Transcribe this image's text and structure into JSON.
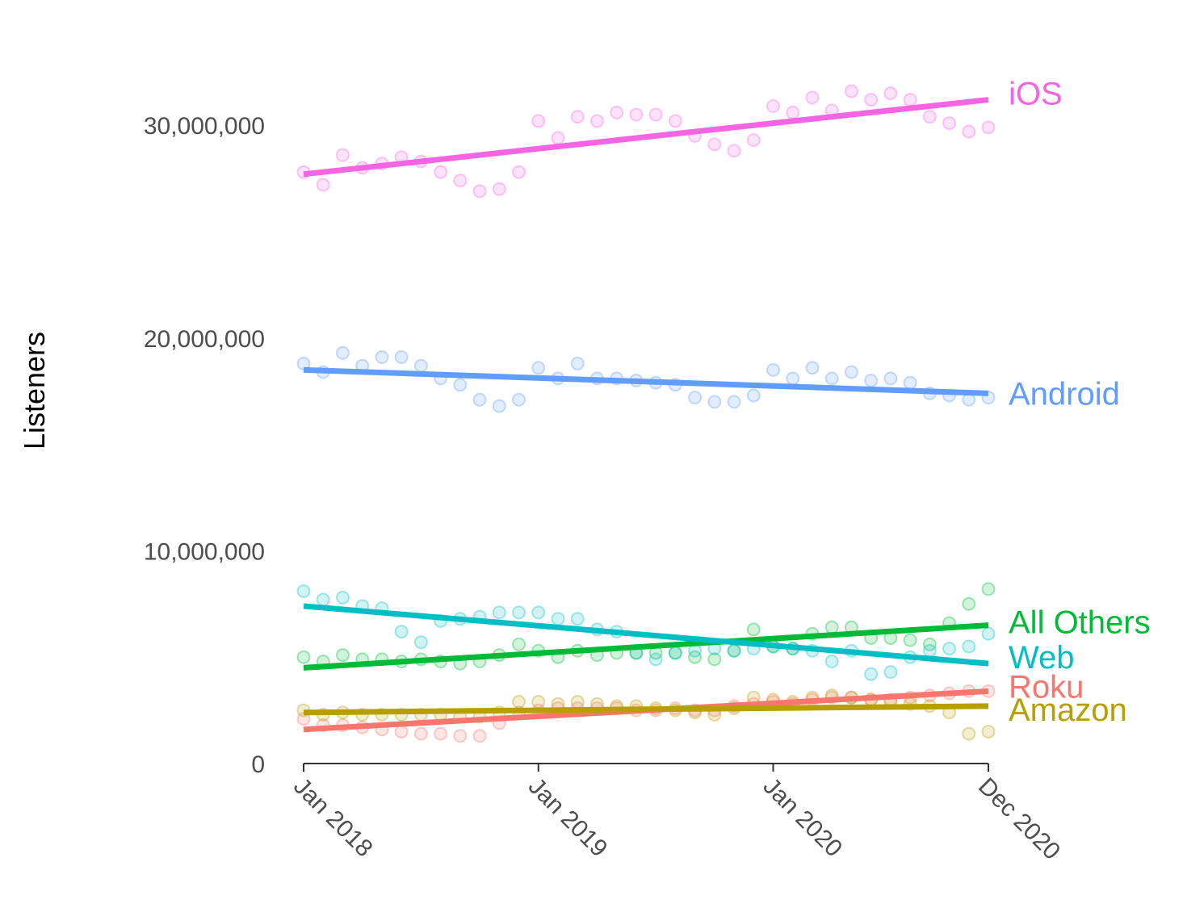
{
  "chart_data": {
    "type": "scatter",
    "ylabel": "Listeners",
    "xlabel": "",
    "ylim": [
      0,
      34000000
    ],
    "y_ticks": [
      {
        "value": 0,
        "label": "0"
      },
      {
        "value": 10000000,
        "label": "10,000,000"
      },
      {
        "value": 20000000,
        "label": "20,000,000"
      },
      {
        "value": 30000000,
        "label": "30,000,000"
      }
    ],
    "x_ticks": [
      {
        "value": "2018-01",
        "label": "Jan 2018"
      },
      {
        "value": "2019-01",
        "label": "Jan 2019"
      },
      {
        "value": "2020-01",
        "label": "Jan 2020"
      },
      {
        "value": "2020-12",
        "label": "Dec 2020"
      }
    ],
    "x": [
      "2018-01",
      "2018-02",
      "2018-03",
      "2018-04",
      "2018-05",
      "2018-06",
      "2018-07",
      "2018-08",
      "2018-09",
      "2018-10",
      "2018-11",
      "2018-12",
      "2019-01",
      "2019-02",
      "2019-03",
      "2019-04",
      "2019-05",
      "2019-06",
      "2019-07",
      "2019-08",
      "2019-09",
      "2019-10",
      "2019-11",
      "2019-12",
      "2020-01",
      "2020-02",
      "2020-03",
      "2020-04",
      "2020-05",
      "2020-06",
      "2020-07",
      "2020-08",
      "2020-09",
      "2020-10",
      "2020-11",
      "2020-12"
    ],
    "grid": false,
    "legend": "direct labels at right end of trend lines",
    "series": [
      {
        "name": "iOS",
        "color": "#F564E3",
        "trend": [
          27700000,
          31200000
        ],
        "values": [
          27800000,
          27200000,
          28600000,
          28000000,
          28200000,
          28500000,
          28300000,
          27800000,
          27400000,
          26900000,
          27000000,
          27800000,
          30200000,
          29400000,
          30400000,
          30200000,
          30600000,
          30500000,
          30500000,
          30200000,
          29500000,
          29100000,
          28800000,
          29300000,
          30900000,
          30600000,
          31300000,
          30700000,
          31600000,
          31200000,
          31500000,
          31200000,
          30400000,
          30100000,
          29700000,
          29900000
        ]
      },
      {
        "name": "Android",
        "color": "#619CFF",
        "trend": [
          18500000,
          17400000
        ],
        "values": [
          18800000,
          18400000,
          19300000,
          18700000,
          19100000,
          19100000,
          18700000,
          18100000,
          17800000,
          17100000,
          16800000,
          17100000,
          18600000,
          18100000,
          18800000,
          18100000,
          18100000,
          18000000,
          17900000,
          17800000,
          17200000,
          17000000,
          17000000,
          17300000,
          18500000,
          18100000,
          18600000,
          18100000,
          18400000,
          18000000,
          18100000,
          17900000,
          17400000,
          17300000,
          17100000,
          17200000
        ]
      },
      {
        "name": "All Others",
        "color": "#00BA38",
        "trend": [
          4500000,
          6500000
        ],
        "values": [
          5000000,
          4800000,
          5100000,
          4900000,
          4900000,
          4800000,
          4900000,
          4800000,
          4700000,
          4800000,
          5100000,
          5600000,
          5300000,
          5000000,
          5300000,
          5100000,
          5200000,
          5200000,
          5200000,
          5200000,
          5000000,
          4900000,
          5300000,
          6300000,
          5500000,
          5400000,
          6100000,
          6400000,
          6400000,
          5900000,
          5900000,
          5800000,
          5600000,
          6600000,
          7500000,
          8200000
        ]
      },
      {
        "name": "Web",
        "color": "#00BFC4",
        "trend": [
          7400000,
          4700000
        ],
        "values": [
          8100000,
          7700000,
          7800000,
          7400000,
          7300000,
          6200000,
          5700000,
          6700000,
          6800000,
          6900000,
          7100000,
          7100000,
          7100000,
          6800000,
          6800000,
          6300000,
          6200000,
          5200000,
          4900000,
          5200000,
          5300000,
          5400000,
          5300000,
          5400000,
          5500000,
          5400000,
          5300000,
          4800000,
          5300000,
          4200000,
          4300000,
          5000000,
          5300000,
          5400000,
          5500000,
          6100000
        ]
      },
      {
        "name": "Roku",
        "color": "#F8766D",
        "trend": [
          1600000,
          3400000
        ],
        "values": [
          2100000,
          1800000,
          1800000,
          1700000,
          1600000,
          1500000,
          1400000,
          1400000,
          1300000,
          1300000,
          1900000,
          2400000,
          2500000,
          2600000,
          2600000,
          2600000,
          2600000,
          2500000,
          2500000,
          2600000,
          2500000,
          2500000,
          2700000,
          2800000,
          2900000,
          2800000,
          3000000,
          3100000,
          3100000,
          3000000,
          3000000,
          3100000,
          3200000,
          3300000,
          3400000,
          3400000
        ]
      },
      {
        "name": "Amazon",
        "color": "#B79F00",
        "trend": [
          2400000,
          2700000
        ],
        "values": [
          2500000,
          2300000,
          2400000,
          2300000,
          2300000,
          2300000,
          2300000,
          2300000,
          2200000,
          2200000,
          2400000,
          2900000,
          2900000,
          2800000,
          2900000,
          2800000,
          2700000,
          2700000,
          2600000,
          2500000,
          2400000,
          2300000,
          2600000,
          3100000,
          3000000,
          2900000,
          3100000,
          3200000,
          3100000,
          3000000,
          2900000,
          2800000,
          2700000,
          2400000,
          1400000,
          1500000
        ]
      }
    ]
  }
}
